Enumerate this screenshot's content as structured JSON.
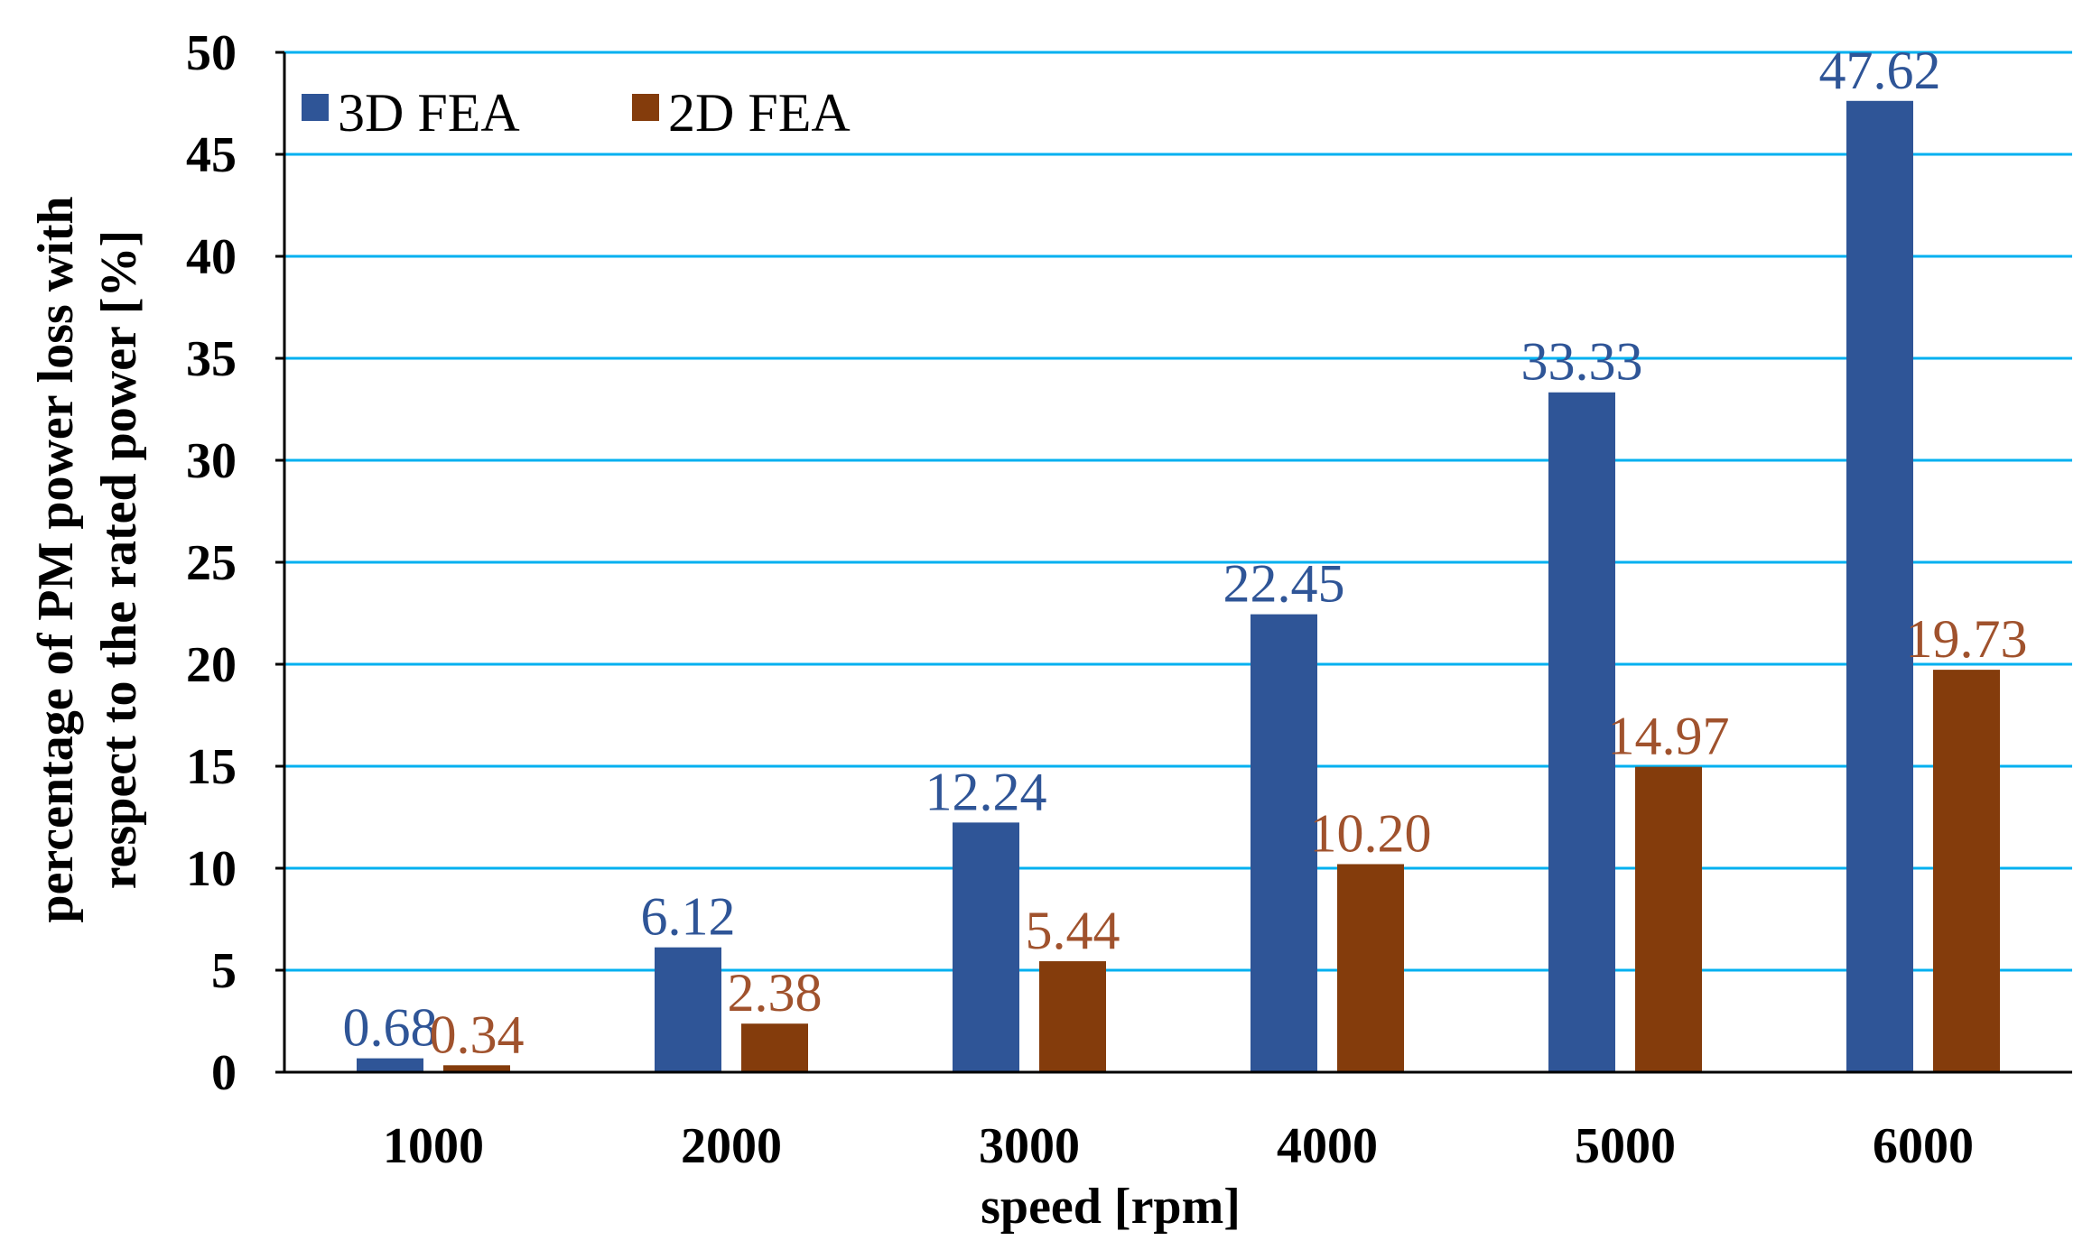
{
  "chart_data": {
    "type": "bar",
    "title": "",
    "xlabel": "speed [rpm]",
    "ylabel_lines": [
      "percentage of PM power loss with",
      "respect to the rated power [%]"
    ],
    "categories": [
      "1000",
      "2000",
      "3000",
      "4000",
      "5000",
      "6000"
    ],
    "series": [
      {
        "name": "3D FEA",
        "color": "#2F5597",
        "values": [
          0.68,
          6.12,
          12.24,
          22.45,
          33.33,
          47.62
        ],
        "labels": [
          "0.68",
          "6.12",
          "12.24",
          "22.45",
          "33.33",
          "47.62"
        ]
      },
      {
        "name": "2D FEA",
        "color": "#843C0C",
        "label_color": "#A0522D",
        "values": [
          0.34,
          2.38,
          5.44,
          10.2,
          14.97,
          19.73
        ],
        "labels": [
          "0.34",
          "2.38",
          "5.44",
          "10.20",
          "14.97",
          "19.73"
        ]
      }
    ],
    "ylim": [
      0,
      50
    ],
    "yticks": [
      "0",
      "5",
      "10",
      "15",
      "20",
      "25",
      "30",
      "35",
      "40",
      "45",
      "50"
    ],
    "grid": true,
    "grid_color": "#00B0F0",
    "legend_position": "top-left"
  }
}
